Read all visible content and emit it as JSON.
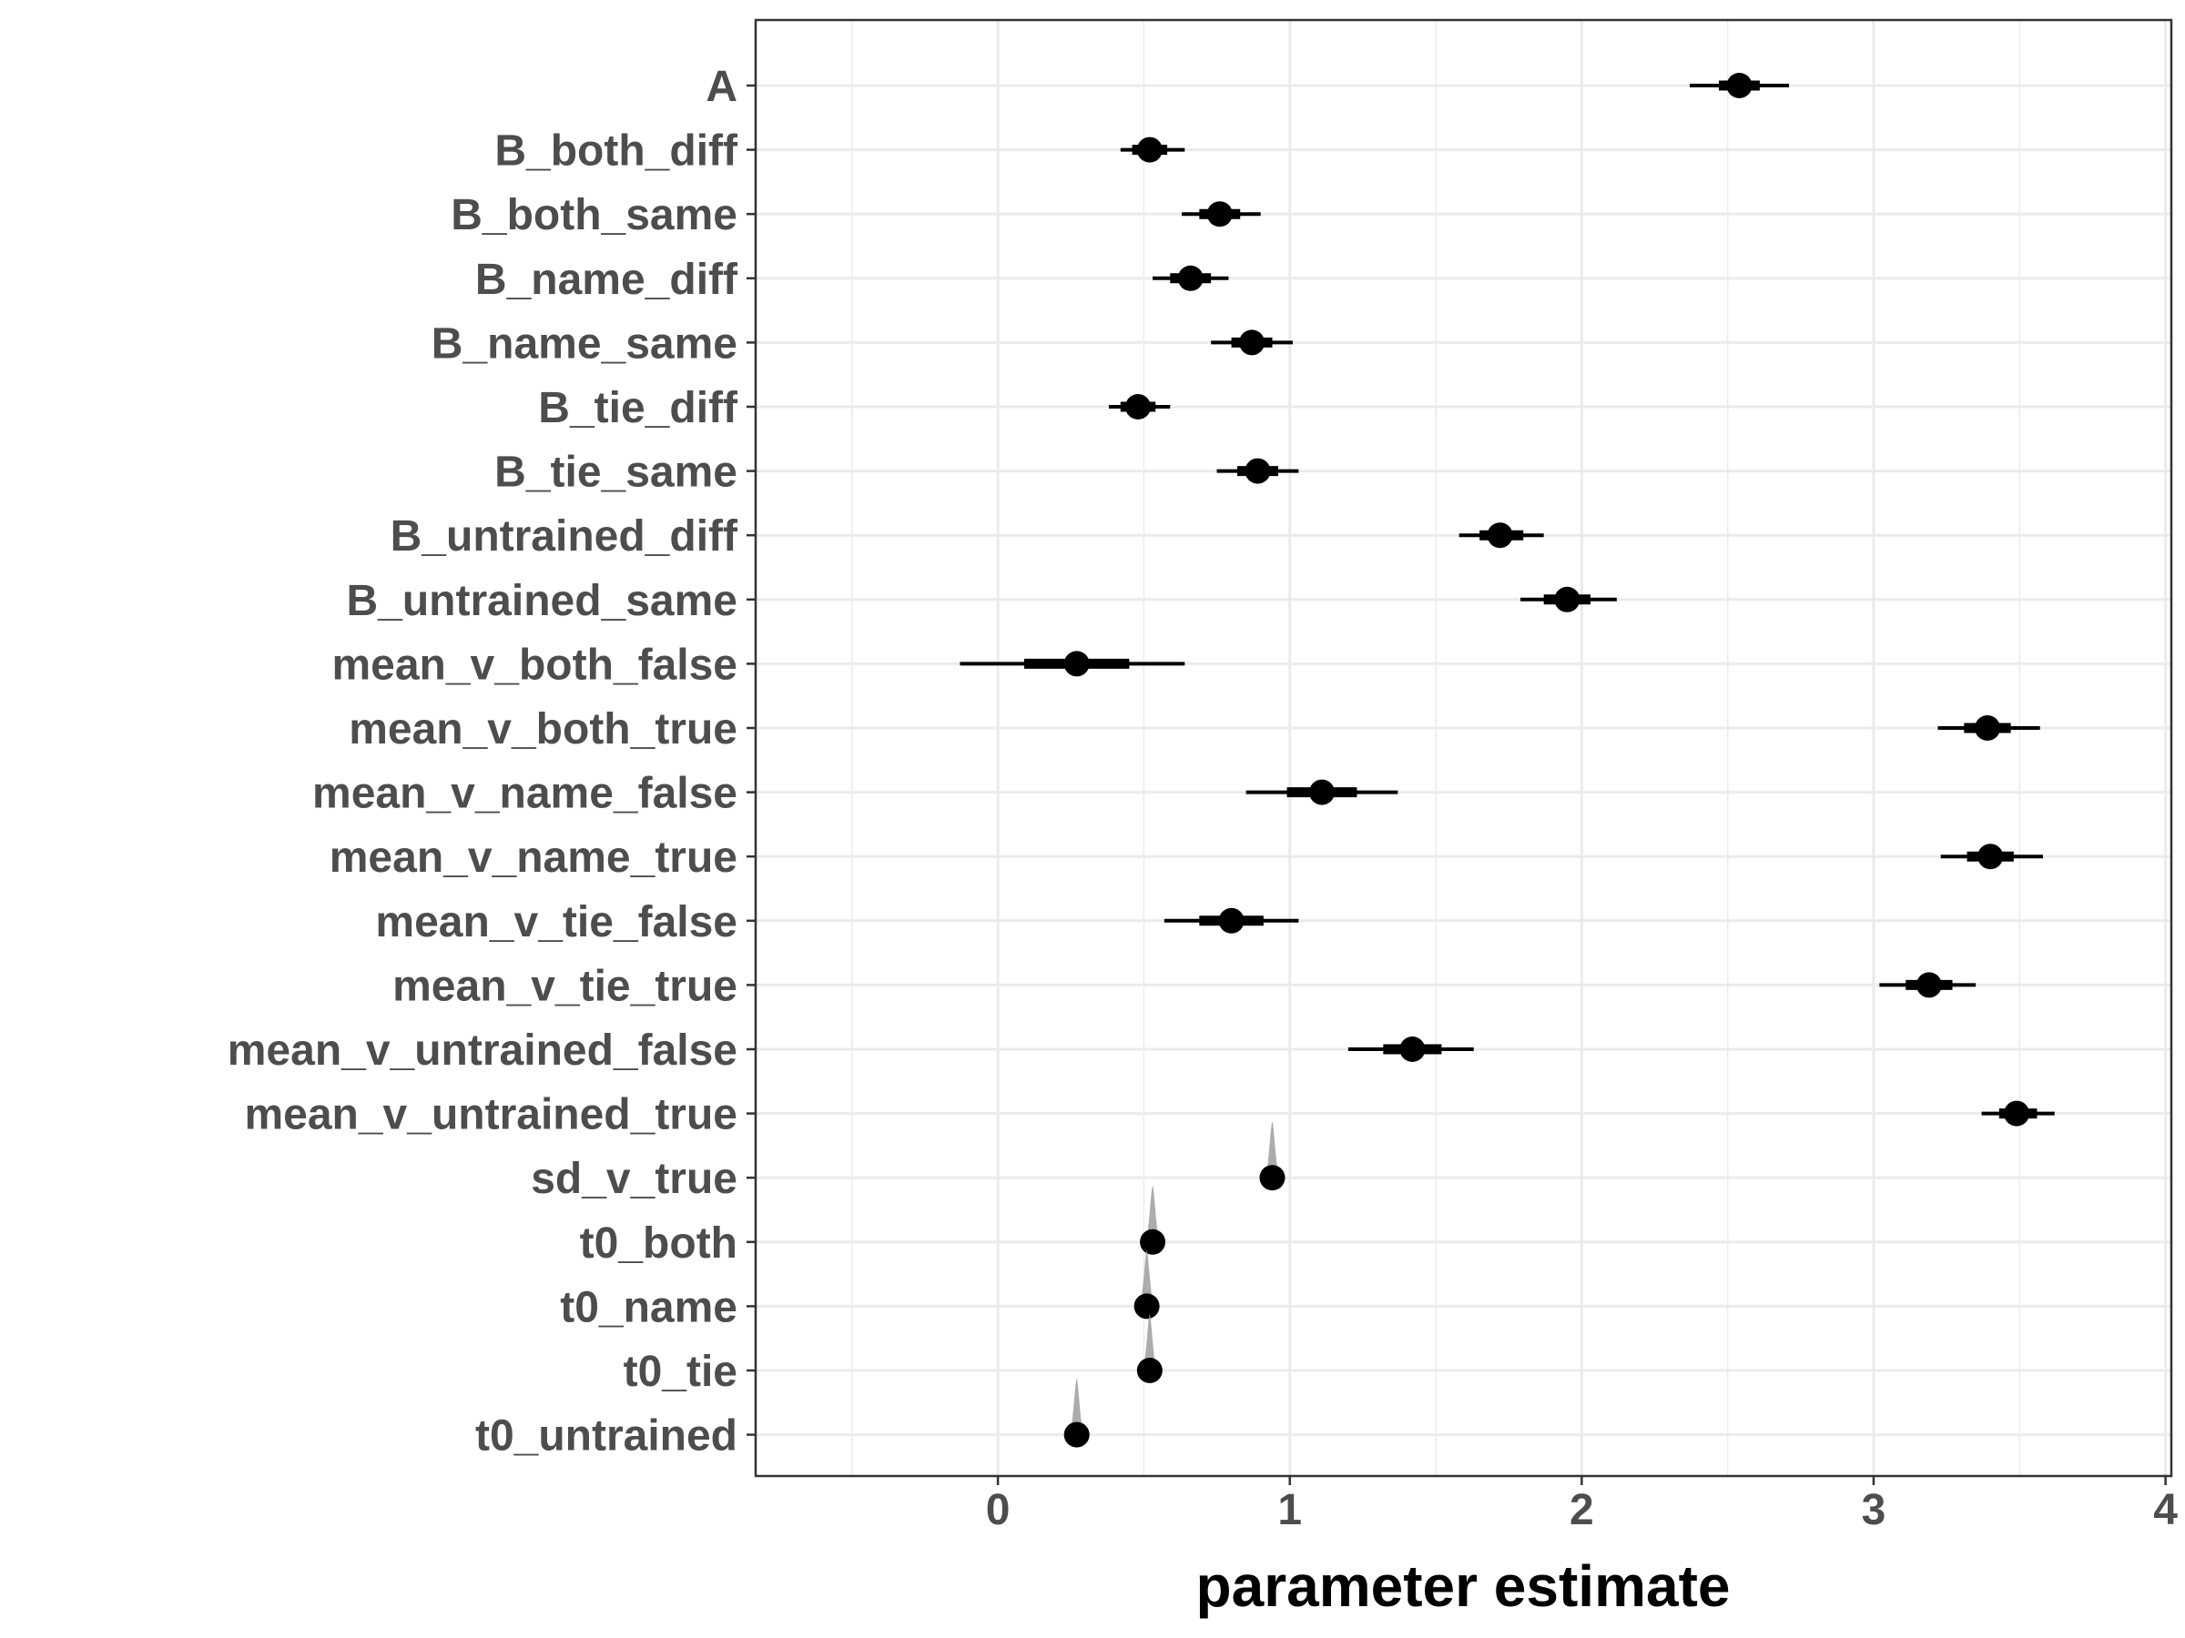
{
  "chart_data": {
    "type": "interval",
    "xlabel": "parameter estimate",
    "ylabel": "",
    "xlim": [
      -0.83,
      4.02
    ],
    "x_ticks": [
      0,
      1,
      2,
      3,
      4
    ],
    "x_tick_labels": [
      "0",
      "1",
      "2",
      "3",
      "4"
    ],
    "grid": true,
    "colors": {
      "point": "#000000",
      "interval": "#000000",
      "density": "#9e9e9e",
      "grid": "#ebebeb",
      "panel_border": "#333333"
    },
    "parameters": [
      {
        "label": "A",
        "estimate": 2.54,
        "inner": [
          2.47,
          2.61
        ],
        "outer": [
          2.37,
          2.71
        ],
        "density": false
      },
      {
        "label": "B_both_diff",
        "estimate": 0.52,
        "inner": [
          0.46,
          0.58
        ],
        "outer": [
          0.42,
          0.64
        ],
        "density": false
      },
      {
        "label": "B_both_same",
        "estimate": 0.76,
        "inner": [
          0.69,
          0.83
        ],
        "outer": [
          0.63,
          0.9
        ],
        "density": false
      },
      {
        "label": "B_name_diff",
        "estimate": 0.66,
        "inner": [
          0.59,
          0.73
        ],
        "outer": [
          0.53,
          0.79
        ],
        "density": false
      },
      {
        "label": "B_name_same",
        "estimate": 0.87,
        "inner": [
          0.8,
          0.94
        ],
        "outer": [
          0.73,
          1.01
        ],
        "density": false
      },
      {
        "label": "B_tie_diff",
        "estimate": 0.48,
        "inner": [
          0.42,
          0.54
        ],
        "outer": [
          0.38,
          0.59
        ],
        "density": false
      },
      {
        "label": "B_tie_same",
        "estimate": 0.89,
        "inner": [
          0.82,
          0.96
        ],
        "outer": [
          0.75,
          1.03
        ],
        "density": false
      },
      {
        "label": "B_untrained_diff",
        "estimate": 1.72,
        "inner": [
          1.65,
          1.8
        ],
        "outer": [
          1.58,
          1.87
        ],
        "density": false
      },
      {
        "label": "B_untrained_same",
        "estimate": 1.95,
        "inner": [
          1.87,
          2.03
        ],
        "outer": [
          1.79,
          2.12
        ],
        "density": false
      },
      {
        "label": "mean_v_both_false",
        "estimate": 0.27,
        "inner": [
          0.09,
          0.45
        ],
        "outer": [
          -0.13,
          0.64
        ],
        "density": false
      },
      {
        "label": "mean_v_both_true",
        "estimate": 3.39,
        "inner": [
          3.31,
          3.47
        ],
        "outer": [
          3.22,
          3.57
        ],
        "density": false
      },
      {
        "label": "mean_v_name_false",
        "estimate": 1.11,
        "inner": [
          0.99,
          1.23
        ],
        "outer": [
          0.85,
          1.37
        ],
        "density": false
      },
      {
        "label": "mean_v_name_true",
        "estimate": 3.4,
        "inner": [
          3.32,
          3.48
        ],
        "outer": [
          3.23,
          3.58
        ],
        "density": false
      },
      {
        "label": "mean_v_tie_false",
        "estimate": 0.8,
        "inner": [
          0.69,
          0.91
        ],
        "outer": [
          0.57,
          1.03
        ],
        "density": false
      },
      {
        "label": "mean_v_tie_true",
        "estimate": 3.19,
        "inner": [
          3.11,
          3.27
        ],
        "outer": [
          3.02,
          3.35
        ],
        "density": false
      },
      {
        "label": "mean_v_untrained_false",
        "estimate": 1.42,
        "inner": [
          1.32,
          1.52
        ],
        "outer": [
          1.2,
          1.63
        ],
        "density": false
      },
      {
        "label": "mean_v_untrained_true",
        "estimate": 3.49,
        "inner": [
          3.43,
          3.56
        ],
        "outer": [
          3.37,
          3.62
        ],
        "density": false
      },
      {
        "label": "sd_v_true",
        "estimate": 0.94,
        "inner": [
          0.93,
          0.95
        ],
        "outer": [
          0.92,
          0.96
        ],
        "density": true
      },
      {
        "label": "t0_both",
        "estimate": 0.53,
        "inner": [
          0.52,
          0.54
        ],
        "outer": [
          0.51,
          0.55
        ],
        "density": true
      },
      {
        "label": "t0_name",
        "estimate": 0.51,
        "inner": [
          0.5,
          0.52
        ],
        "outer": [
          0.49,
          0.53
        ],
        "density": true
      },
      {
        "label": "t0_tie",
        "estimate": 0.52,
        "inner": [
          0.51,
          0.53
        ],
        "outer": [
          0.5,
          0.54
        ],
        "density": true
      },
      {
        "label": "t0_untrained",
        "estimate": 0.27,
        "inner": [
          0.26,
          0.28
        ],
        "outer": [
          0.25,
          0.29
        ],
        "density": true
      }
    ]
  }
}
